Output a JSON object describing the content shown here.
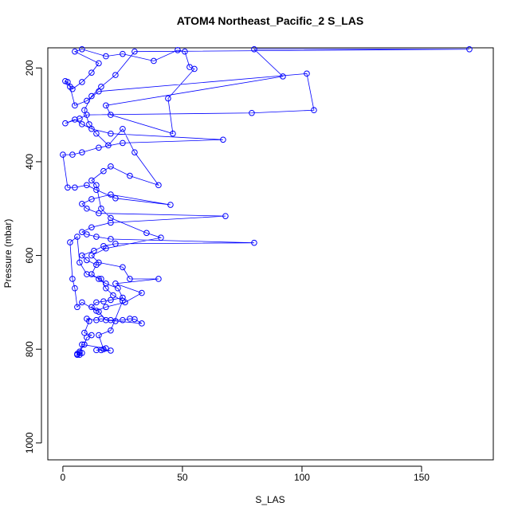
{
  "chart_data": {
    "type": "line",
    "title": "ATOM4 Northeast_Pacific_2 S_LAS",
    "xlabel": "S_LAS",
    "ylabel": "Pressure (mbar)",
    "color": "#0000ff",
    "x": [
      7,
      6,
      8,
      7,
      9,
      10,
      12,
      9,
      11,
      10,
      14,
      16,
      20,
      25,
      28,
      30,
      33,
      22,
      18,
      15,
      12,
      14,
      17,
      20,
      25,
      23,
      18,
      15,
      12,
      14,
      10,
      8,
      13,
      17,
      22,
      80,
      20,
      14,
      10,
      8,
      12,
      20,
      68,
      15,
      10,
      8,
      12,
      20,
      45,
      22,
      14,
      10,
      5,
      2,
      0,
      4,
      8,
      15,
      25,
      67,
      20,
      12,
      8,
      5,
      1,
      7,
      10,
      79,
      105,
      102,
      15,
      10,
      5,
      3,
      1,
      2,
      4,
      8,
      12,
      15,
      5,
      8,
      18,
      25,
      38,
      48,
      51,
      53,
      55,
      44,
      46,
      20,
      18,
      92,
      80,
      170,
      30,
      22,
      16,
      12,
      9,
      11,
      14,
      19,
      25,
      30,
      40,
      28,
      20,
      17,
      12,
      14,
      16,
      20,
      35,
      41,
      18,
      12,
      15,
      25,
      28,
      40,
      22,
      33,
      26,
      18,
      14,
      8,
      6,
      5,
      4,
      3,
      6,
      7,
      10,
      16,
      18,
      21,
      25,
      20,
      15,
      17,
      20,
      16,
      14,
      18,
      8,
      7,
      6
    ],
    "values": [
      812,
      810,
      808,
      805,
      790,
      775,
      770,
      765,
      740,
      735,
      738,
      735,
      738,
      738,
      735,
      736,
      745,
      740,
      738,
      720,
      710,
      700,
      698,
      695,
      690,
      670,
      660,
      650,
      640,
      620,
      610,
      600,
      590,
      580,
      575,
      573,
      565,
      560,
      555,
      550,
      540,
      530,
      516,
      510,
      500,
      490,
      480,
      470,
      492,
      478,
      460,
      450,
      455,
      455,
      385,
      385,
      380,
      370,
      360,
      353,
      340,
      330,
      320,
      310,
      318,
      308,
      300,
      296,
      290,
      212,
      250,
      270,
      280,
      240,
      228,
      230,
      245,
      230,
      210,
      190,
      165,
      160,
      175,
      170,
      185,
      162,
      165,
      198,
      202,
      265,
      340,
      300,
      280,
      218,
      160,
      160,
      165,
      215,
      240,
      260,
      290,
      320,
      340,
      365,
      330,
      380,
      450,
      430,
      410,
      420,
      440,
      450,
      500,
      520,
      552,
      562,
      585,
      600,
      615,
      625,
      650,
      650,
      660,
      680,
      700,
      710,
      718,
      700,
      710,
      670,
      650,
      572,
      560,
      615,
      640,
      650,
      670,
      685,
      697,
      760,
      770,
      800,
      803,
      802,
      802,
      798,
      790,
      808,
      812
    ],
    "xlim": [
      -6.3,
      180
    ],
    "ylim": [
      1036,
      157
    ],
    "xticks": [
      0,
      50,
      100,
      150
    ],
    "yticks": [
      200,
      400,
      600,
      800,
      1000
    ]
  }
}
